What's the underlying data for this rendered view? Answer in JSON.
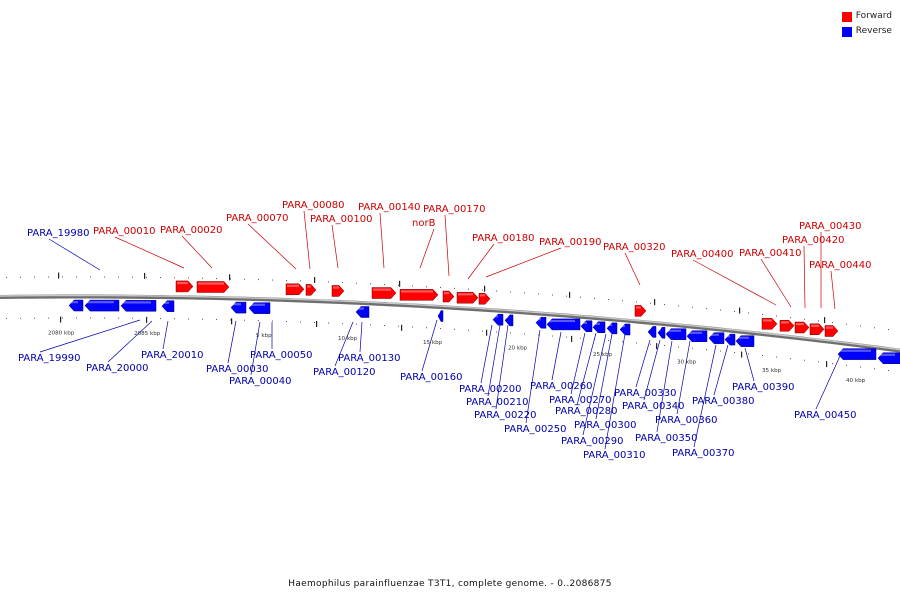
{
  "legend": {
    "forward_label": "Forward",
    "reverse_label": "Reverse",
    "forward_color": "#ff0000",
    "reverse_color": "#0000ff"
  },
  "caption": "Haemophilus parainfluenzae T3T1, complete genome. - 0..2086875",
  "scale_labels": [
    "2080 kbp",
    "2085 kbp",
    "5 kbp",
    "10 kbp",
    "15 kbp",
    "20 kbp",
    "25 kbp",
    "30 kbp",
    "35 kbp",
    "40 kbp"
  ],
  "forward_genes": [
    "PARA_00010",
    "PARA_00020",
    "PARA_00070",
    "PARA_00080",
    "PARA_00100",
    "PARA_00140",
    "norB",
    "PARA_00170",
    "PARA_00180",
    "PARA_00190",
    "PARA_00320",
    "PARA_00400",
    "PARA_00410",
    "PARA_00420",
    "PARA_00430",
    "PARA_00440"
  ],
  "reverse_genes": [
    "PARA_19980",
    "PARA_19990",
    "PARA_20000",
    "PARA_20010",
    "PARA_00030",
    "PARA_00040",
    "PARA_00050",
    "PARA_00120",
    "PARA_00130",
    "PARA_00160",
    "PARA_00200",
    "PARA_00210",
    "PARA_00220",
    "PARA_00250",
    "PARA_00260",
    "PARA_00270",
    "PARA_00280",
    "PARA_00290",
    "PARA_00300",
    "PARA_00310",
    "PARA_00330",
    "PARA_00340",
    "PARA_00350",
    "PARA_00360",
    "PARA_00370",
    "PARA_00380",
    "PARA_00390",
    "PARA_00450"
  ]
}
